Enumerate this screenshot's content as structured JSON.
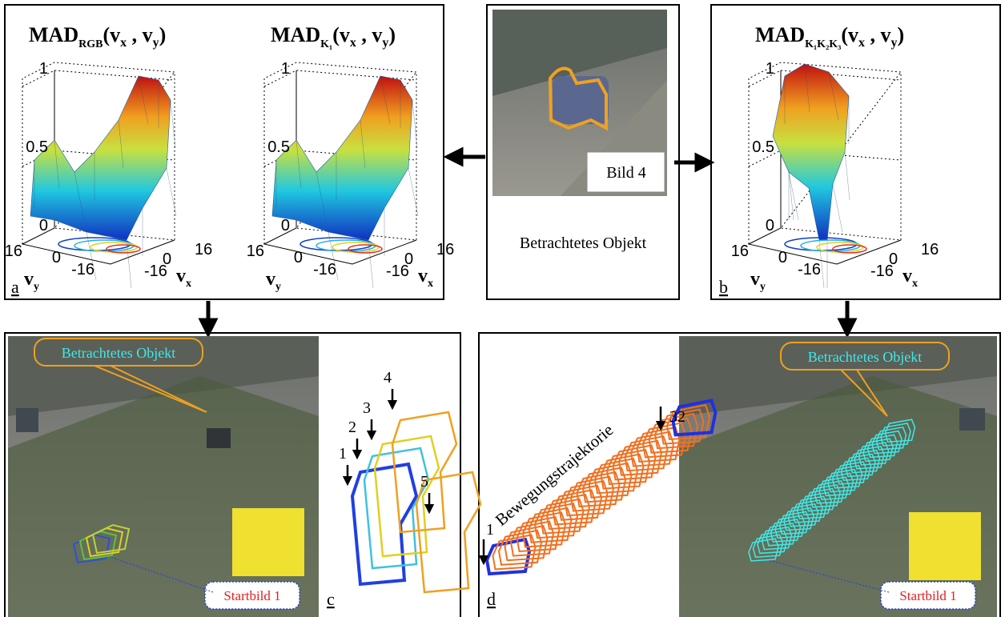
{
  "plots": [
    {
      "title": {
        "name": "MAD",
        "sub": "RGB",
        "open": "(v",
        "x": "x",
        "sep": " , v",
        "y": "y",
        "close": ")"
      },
      "zticks": [
        "1",
        "0.5",
        "0"
      ],
      "vy_ticks": [
        "16",
        "0",
        "-16"
      ],
      "vx_ticks": [
        "-16",
        "0",
        "16"
      ],
      "vy_label": {
        "name": "v",
        "sub": "y"
      },
      "vx_label": {
        "name": "v",
        "sub": "x"
      }
    },
    {
      "title": {
        "name": "MAD",
        "sub": "K₁",
        "open": "(v",
        "x": "x",
        "sep": " , v",
        "y": "y",
        "close": ")"
      },
      "zticks": [
        "1",
        "0.5",
        "0"
      ],
      "vy_ticks": [
        "16",
        "0",
        "-16"
      ],
      "vx_ticks": [
        "-16",
        "0",
        "16"
      ],
      "vy_label": {
        "name": "v",
        "sub": "y"
      },
      "vx_label": {
        "name": "v",
        "sub": "x"
      }
    },
    {
      "title": {
        "name": "MAD",
        "sub": "K₁K₂K₃",
        "open": "(v",
        "x": "x",
        "sep": " , v",
        "y": "y",
        "close": ")"
      },
      "zticks": [
        "1",
        "0.5",
        "0"
      ],
      "vy_ticks": [
        "16",
        "0",
        "-16"
      ],
      "vx_ticks": [
        "-16",
        "0",
        "16"
      ],
      "vy_label": {
        "name": "v",
        "sub": "y"
      },
      "vx_label": {
        "name": "v",
        "sub": "x"
      }
    }
  ],
  "panel_labels": [
    "a",
    "b",
    "c",
    "d"
  ],
  "source": {
    "caption": "Bild 4",
    "label": "Betrachtetes Objekt"
  },
  "left_result": {
    "callout": "Betrachtetes Objekt",
    "start": "Startbild 1",
    "frames": [
      "1",
      "2",
      "3",
      "4",
      "5"
    ]
  },
  "right_result": {
    "trajectory": "Bewegungstrajektorie",
    "first": "1",
    "last": "32",
    "callout": "Betrachtetes Objekt",
    "start": "Startbild 1"
  }
}
